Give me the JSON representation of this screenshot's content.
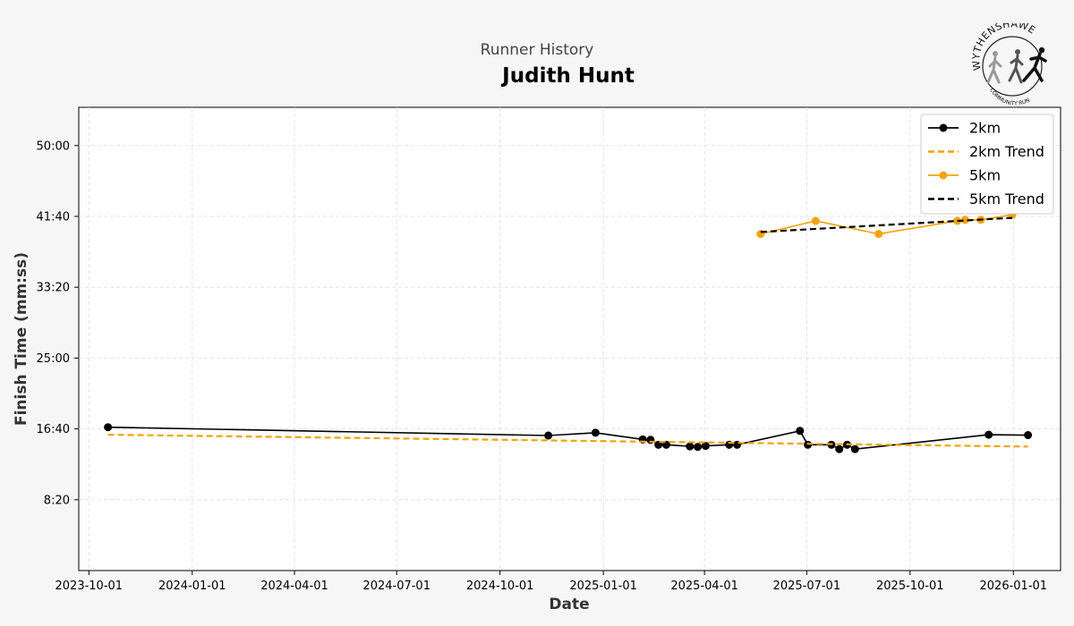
{
  "header": {
    "subtitle": "Runner History",
    "title": "Judith Hunt"
  },
  "logo": {
    "text_top": "WYTHENSHAWE",
    "text_bottom": "COMMUNITY RUN",
    "icon": "runners-logo"
  },
  "colors": {
    "background": "#f6f6f6",
    "plot_background": "#ffffff",
    "series_2km": "#000000",
    "series_5km": "#f5a300",
    "grid": "#dddddd"
  },
  "chart_data": {
    "type": "line",
    "title": "Judith Hunt",
    "subtitle": "Runner History",
    "xlabel": "Date",
    "ylabel": "Finish Time (mm:ss)",
    "x_ticks": [
      "2023-10-01",
      "2024-01-01",
      "2024-04-01",
      "2024-07-01",
      "2024-10-01",
      "2025-01-01",
      "2025-04-01",
      "2025-07-01",
      "2025-10-01",
      "2026-01-01"
    ],
    "y_ticks": [
      "8:20",
      "16:40",
      "25:00",
      "33:20",
      "41:40",
      "50:00"
    ],
    "y_tick_seconds": [
      500,
      1000,
      1500,
      2000,
      2500,
      3000
    ],
    "xlim": [
      "2023-09-22",
      "2026-02-12"
    ],
    "ylim_seconds": [
      0,
      3270
    ],
    "grid": true,
    "legend_position": "top-right",
    "series": [
      {
        "name": "2km",
        "style": "line-markers",
        "color": "#000000",
        "points": [
          {
            "x": "2023-10-18",
            "y": "16:52"
          },
          {
            "x": "2024-11-13",
            "y": "15:53"
          },
          {
            "x": "2024-12-25",
            "y": "16:13"
          },
          {
            "x": "2025-02-05",
            "y": "15:26"
          },
          {
            "x": "2025-02-12",
            "y": "15:23"
          },
          {
            "x": "2025-02-19",
            "y": "14:48"
          },
          {
            "x": "2025-02-26",
            "y": "14:48"
          },
          {
            "x": "2025-03-19",
            "y": "14:37"
          },
          {
            "x": "2025-03-26",
            "y": "14:33"
          },
          {
            "x": "2025-04-02",
            "y": "14:40"
          },
          {
            "x": "2025-04-23",
            "y": "14:48"
          },
          {
            "x": "2025-04-30",
            "y": "14:48"
          },
          {
            "x": "2025-06-25",
            "y": "16:26"
          },
          {
            "x": "2025-07-02",
            "y": "14:48"
          },
          {
            "x": "2025-07-23",
            "y": "14:48"
          },
          {
            "x": "2025-07-30",
            "y": "14:17"
          },
          {
            "x": "2025-08-06",
            "y": "14:48"
          },
          {
            "x": "2025-08-13",
            "y": "14:17"
          },
          {
            "x": "2025-12-10",
            "y": "15:59"
          },
          {
            "x": "2026-01-14",
            "y": "15:56"
          }
        ]
      },
      {
        "name": "2km Trend",
        "style": "dashed",
        "color": "#f5a300",
        "points": [
          {
            "x": "2023-10-18",
            "y": "15:59"
          },
          {
            "x": "2026-01-14",
            "y": "14:35"
          }
        ]
      },
      {
        "name": "5km",
        "style": "line-markers",
        "color": "#f5a300",
        "points": [
          {
            "x": "2025-05-21",
            "y": "39:36"
          },
          {
            "x": "2025-07-09",
            "y": "41:08"
          },
          {
            "x": "2025-09-03",
            "y": "39:36"
          },
          {
            "x": "2025-11-12",
            "y": "41:08"
          },
          {
            "x": "2025-11-19",
            "y": "41:16"
          },
          {
            "x": "2025-12-03",
            "y": "41:16"
          },
          {
            "x": "2025-12-31",
            "y": "41:51"
          }
        ]
      },
      {
        "name": "5km Trend",
        "style": "dashed",
        "color": "#000000",
        "points": [
          {
            "x": "2025-05-21",
            "y": "39:50"
          },
          {
            "x": "2025-12-31",
            "y": "41:30"
          }
        ]
      }
    ]
  }
}
